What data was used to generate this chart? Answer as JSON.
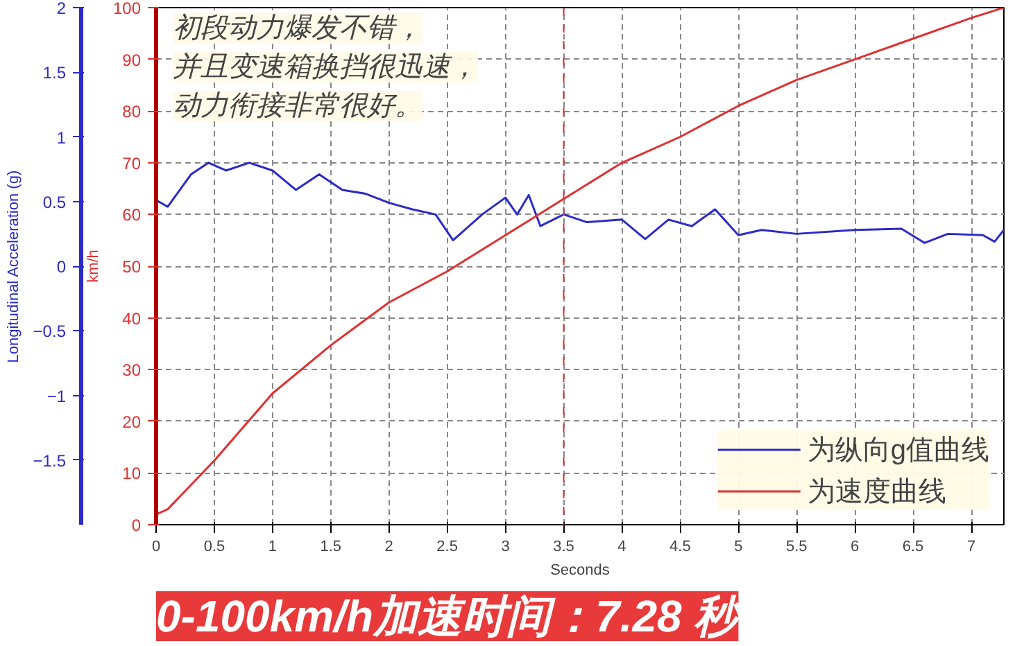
{
  "chart_data": {
    "type": "line",
    "xlabel": "Seconds",
    "ylabel": "km/h",
    "y2label": "Longitudinal Acceleration (g)",
    "xlim": [
      0,
      7.28
    ],
    "xticks": [
      0,
      0.5,
      1,
      1.5,
      2,
      2.5,
      3,
      3.5,
      4,
      4.5,
      5,
      5.5,
      6,
      6.5,
      7
    ],
    "ylim": [
      0,
      100
    ],
    "yticks": [
      0,
      10,
      20,
      30,
      40,
      50,
      60,
      70,
      80,
      90,
      100
    ],
    "y2lim": [
      -2,
      2
    ],
    "y2ticks": [
      -1.5,
      -1,
      -0.5,
      0,
      0.5,
      1,
      1.5,
      2
    ],
    "grid": true,
    "legend": "bottom right",
    "line_style": "solid",
    "series": [
      {
        "name": "为纵向g值曲线",
        "color": "#2b2bc8",
        "axis": "y2",
        "x": [
          0,
          0.1,
          0.3,
          0.45,
          0.6,
          0.8,
          1.0,
          1.2,
          1.4,
          1.6,
          1.8,
          2.0,
          2.2,
          2.4,
          2.55,
          2.8,
          3.0,
          3.1,
          3.2,
          3.3,
          3.5,
          3.7,
          4.0,
          4.2,
          4.4,
          4.6,
          4.8,
          5.0,
          5.2,
          5.5,
          6.0,
          6.4,
          6.6,
          6.8,
          7.1,
          7.2,
          7.28
        ],
        "values": [
          0.51,
          0.46,
          0.71,
          0.8,
          0.74,
          0.8,
          0.74,
          0.59,
          0.71,
          0.59,
          0.56,
          0.49,
          0.44,
          0.4,
          0.2,
          0.4,
          0.53,
          0.4,
          0.55,
          0.31,
          0.4,
          0.34,
          0.36,
          0.21,
          0.36,
          0.31,
          0.44,
          0.24,
          0.28,
          0.25,
          0.28,
          0.29,
          0.18,
          0.25,
          0.24,
          0.19,
          0.28
        ]
      },
      {
        "name": "为速度曲线",
        "color": "#e03030",
        "x": [
          0,
          0.1,
          0.5,
          1.0,
          1.5,
          2.0,
          2.5,
          3.0,
          3.5,
          4.0,
          4.5,
          5.0,
          5.5,
          6.0,
          6.5,
          7.0,
          7.28
        ],
        "values": [
          2,
          3,
          12.4,
          25.4,
          34.7,
          43,
          49,
          56,
          63,
          70,
          75,
          81,
          86,
          90,
          94,
          98,
          100
        ]
      }
    ],
    "ref_lines": [
      {
        "axis": "x",
        "value": 3.5,
        "color": "#e03030",
        "line_style": "dashed"
      }
    ],
    "annotations": [
      "初段动力爆发不错，",
      "并且变速箱换挡很迅速，",
      "动力衔接非常很好。",
      "0-100km/h加速时间：7.28 秒"
    ]
  }
}
